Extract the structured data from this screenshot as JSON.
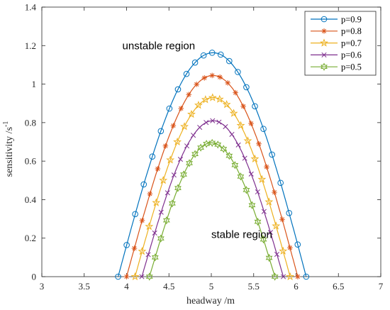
{
  "chart_data": {
    "type": "line",
    "xlabel": "headway /m",
    "ylabel": "sensitivity /s",
    "ylabel_sup": "-1",
    "xlim": [
      3,
      7
    ],
    "ylim": [
      0,
      1.4
    ],
    "xticks": [
      "3",
      "3.5",
      "4",
      "4.5",
      "5",
      "5.5",
      "6",
      "6.5",
      "7"
    ],
    "yticks": [
      "0",
      "0.2",
      "0.4",
      "0.6",
      "0.8",
      "1",
      "1.2",
      "1.4"
    ],
    "legend_position": "top-right",
    "annotations": [
      {
        "text": "unstable region",
        "x": 3.95,
        "y": 1.18
      },
      {
        "text": "stable region",
        "x": 5.0,
        "y": 0.2
      }
    ],
    "series": [
      {
        "name": "p=0.9",
        "color": "#0072BD",
        "marker": "circle",
        "peak_x": 5.02,
        "peak_y": 1.163,
        "x_min": 3.9,
        "x_max": 6.12
      },
      {
        "name": "p=0.8",
        "color": "#D95319",
        "marker": "asterisk",
        "peak_x": 5.02,
        "peak_y": 1.045,
        "x_min": 4.0,
        "x_max": 6.02
      },
      {
        "name": "p=0.7",
        "color": "#EDB120",
        "marker": "star5",
        "peak_x": 5.02,
        "peak_y": 0.93,
        "x_min": 4.1,
        "x_max": 5.93
      },
      {
        "name": "p=0.6",
        "color": "#7E2F8E",
        "marker": "cross",
        "peak_x": 5.02,
        "peak_y": 0.81,
        "x_min": 4.18,
        "x_max": 5.85
      },
      {
        "name": "p=0.5",
        "color": "#77AC30",
        "marker": "star6",
        "peak_x": 5.0,
        "peak_y": 0.695,
        "x_min": 4.27,
        "x_max": 5.75
      }
    ]
  }
}
